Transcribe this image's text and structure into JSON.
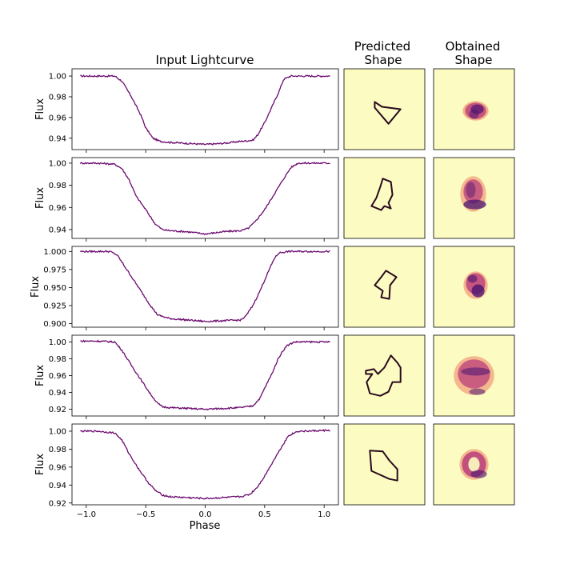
{
  "titles": {
    "lightcurve": "Input Lightcurve",
    "predicted_line1": "Predicted",
    "predicted_line2": "Shape",
    "obtained_line1": "Obtained",
    "obtained_line2": "Shape"
  },
  "colors": {
    "curve": "#6b0a6f",
    "panel_bg": "#fcfcc2",
    "outline": "#2a0a1e",
    "blob_dark": "#4a1470",
    "blob_mid": "#b5367a",
    "blob_light": "#f08a6a"
  },
  "chart_data": {
    "type": "line",
    "xlabel": "Phase",
    "ylabel": "Flux",
    "xlim": [
      -1.12,
      1.12
    ],
    "xticks": [
      -1.0,
      -0.5,
      0.0,
      0.5,
      1.0
    ],
    "xtick_labels": [
      "−1.0",
      "−0.5",
      "0.0",
      "0.5",
      "1.0"
    ],
    "rows": [
      {
        "ylim": [
          0.929,
          1.007
        ],
        "yticks": [
          0.94,
          0.96,
          0.98,
          1.0
        ],
        "ytick_labels": [
          "0.94",
          "0.96",
          "0.98",
          "1.00"
        ],
        "x": [
          -1.05,
          -0.9,
          -0.76,
          -0.7,
          -0.62,
          -0.54,
          -0.5,
          -0.44,
          -0.38,
          -0.3,
          -0.15,
          0.0,
          0.15,
          0.3,
          0.4,
          0.44,
          0.5,
          0.56,
          0.62,
          0.66,
          0.72,
          0.85,
          1.05
        ],
        "y": [
          1.0,
          1.0,
          1.0,
          0.995,
          0.98,
          0.962,
          0.95,
          0.94,
          0.937,
          0.936,
          0.935,
          0.934,
          0.935,
          0.937,
          0.938,
          0.943,
          0.955,
          0.97,
          0.985,
          0.997,
          1.0,
          1.0,
          1.0
        ],
        "predicted_shape": [
          [
            0.38,
            0.41
          ],
          [
            0.47,
            0.47
          ],
          [
            0.7,
            0.5
          ],
          [
            0.55,
            0.68
          ],
          [
            0.38,
            0.48
          ]
        ],
        "obtained_blobs": [
          {
            "cx": 0.52,
            "cy": 0.52,
            "rx": 0.16,
            "ry": 0.12,
            "c": "blob_light",
            "o": 0.65
          },
          {
            "cx": 0.52,
            "cy": 0.52,
            "rx": 0.13,
            "ry": 0.1,
            "c": "blob_mid",
            "o": 0.75
          },
          {
            "cx": 0.54,
            "cy": 0.5,
            "rx": 0.08,
            "ry": 0.06,
            "c": "blob_dark",
            "o": 0.7
          },
          {
            "cx": 0.5,
            "cy": 0.56,
            "rx": 0.06,
            "ry": 0.06,
            "c": "blob_dark",
            "o": 0.55
          }
        ]
      },
      {
        "ylim": [
          0.932,
          1.005
        ],
        "yticks": [
          0.94,
          0.96,
          0.98,
          1.0
        ],
        "ytick_labels": [
          "0.94",
          "0.96",
          "0.98",
          "1.00"
        ],
        "x": [
          -1.05,
          -0.9,
          -0.76,
          -0.7,
          -0.64,
          -0.58,
          -0.5,
          -0.42,
          -0.36,
          -0.3,
          -0.15,
          0.0,
          0.15,
          0.3,
          0.36,
          0.42,
          0.5,
          0.58,
          0.66,
          0.72,
          0.78,
          0.85,
          1.05
        ],
        "y": [
          1.0,
          1.0,
          0.999,
          0.995,
          0.985,
          0.97,
          0.958,
          0.945,
          0.94,
          0.939,
          0.938,
          0.936,
          0.938,
          0.939,
          0.941,
          0.947,
          0.958,
          0.972,
          0.986,
          0.996,
          1.0,
          1.0,
          1.0
        ],
        "predicted_shape": [
          [
            0.48,
            0.26
          ],
          [
            0.58,
            0.3
          ],
          [
            0.6,
            0.46
          ],
          [
            0.55,
            0.56
          ],
          [
            0.58,
            0.63
          ],
          [
            0.5,
            0.6
          ],
          [
            0.46,
            0.65
          ],
          [
            0.34,
            0.6
          ],
          [
            0.4,
            0.5
          ],
          [
            0.45,
            0.36
          ]
        ],
        "obtained_blobs": [
          {
            "cx": 0.49,
            "cy": 0.45,
            "rx": 0.16,
            "ry": 0.22,
            "c": "blob_light",
            "o": 0.6
          },
          {
            "cx": 0.49,
            "cy": 0.42,
            "rx": 0.12,
            "ry": 0.15,
            "c": "blob_mid",
            "o": 0.7
          },
          {
            "cx": 0.51,
            "cy": 0.58,
            "rx": 0.14,
            "ry": 0.06,
            "c": "blob_dark",
            "o": 0.75
          },
          {
            "cx": 0.46,
            "cy": 0.4,
            "rx": 0.06,
            "ry": 0.1,
            "c": "blob_dark",
            "o": 0.45
          }
        ]
      },
      {
        "ylim": [
          0.895,
          1.007
        ],
        "yticks": [
          0.9,
          0.925,
          0.95,
          0.975,
          1.0
        ],
        "ytick_labels": [
          "0.900",
          "0.925",
          "0.950",
          "0.975",
          "1.000"
        ],
        "x": [
          -1.05,
          -0.9,
          -0.8,
          -0.74,
          -0.68,
          -0.6,
          -0.52,
          -0.46,
          -0.4,
          -0.3,
          -0.15,
          0.0,
          0.15,
          0.3,
          0.34,
          0.4,
          0.46,
          0.52,
          0.58,
          0.62,
          0.7,
          0.85,
          1.05
        ],
        "y": [
          1.0,
          1.0,
          1.0,
          0.995,
          0.98,
          0.96,
          0.94,
          0.925,
          0.912,
          0.907,
          0.905,
          0.903,
          0.904,
          0.905,
          0.91,
          0.925,
          0.945,
          0.968,
          0.99,
          0.998,
          1.0,
          1.0,
          1.0
        ],
        "predicted_shape": [
          [
            0.52,
            0.3
          ],
          [
            0.65,
            0.38
          ],
          [
            0.57,
            0.48
          ],
          [
            0.56,
            0.65
          ],
          [
            0.46,
            0.63
          ],
          [
            0.48,
            0.55
          ],
          [
            0.38,
            0.48
          ],
          [
            0.46,
            0.38
          ]
        ],
        "obtained_blobs": [
          {
            "cx": 0.52,
            "cy": 0.48,
            "rx": 0.15,
            "ry": 0.17,
            "c": "blob_light",
            "o": 0.6
          },
          {
            "cx": 0.52,
            "cy": 0.46,
            "rx": 0.12,
            "ry": 0.13,
            "c": "blob_mid",
            "o": 0.75
          },
          {
            "cx": 0.55,
            "cy": 0.55,
            "rx": 0.08,
            "ry": 0.08,
            "c": "blob_dark",
            "o": 0.8
          },
          {
            "cx": 0.48,
            "cy": 0.4,
            "rx": 0.06,
            "ry": 0.05,
            "c": "blob_dark",
            "o": 0.6
          }
        ]
      },
      {
        "ylim": [
          0.912,
          1.008
        ],
        "yticks": [
          0.92,
          0.94,
          0.96,
          0.98,
          1.0
        ],
        "ytick_labels": [
          "0.92",
          "0.94",
          "0.96",
          "0.98",
          "1.00"
        ],
        "x": [
          -1.05,
          -0.9,
          -0.76,
          -0.7,
          -0.62,
          -0.54,
          -0.46,
          -0.4,
          -0.36,
          -0.3,
          -0.15,
          0.0,
          0.15,
          0.3,
          0.4,
          0.46,
          0.5,
          0.56,
          0.62,
          0.68,
          0.75,
          0.85,
          1.05
        ],
        "y": [
          1.001,
          1.001,
          1.0,
          0.99,
          0.972,
          0.955,
          0.938,
          0.927,
          0.923,
          0.922,
          0.921,
          0.92,
          0.921,
          0.922,
          0.924,
          0.933,
          0.945,
          0.962,
          0.982,
          0.995,
          1.0,
          1.0,
          1.0
        ],
        "predicted_shape": [
          [
            0.27,
            0.44
          ],
          [
            0.37,
            0.42
          ],
          [
            0.42,
            0.48
          ],
          [
            0.5,
            0.4
          ],
          [
            0.58,
            0.25
          ],
          [
            0.66,
            0.34
          ],
          [
            0.7,
            0.4
          ],
          [
            0.7,
            0.58
          ],
          [
            0.6,
            0.58
          ],
          [
            0.55,
            0.7
          ],
          [
            0.45,
            0.75
          ],
          [
            0.32,
            0.72
          ],
          [
            0.28,
            0.58
          ],
          [
            0.35,
            0.48
          ],
          [
            0.27,
            0.48
          ]
        ],
        "obtained_blobs": [
          {
            "cx": 0.5,
            "cy": 0.5,
            "rx": 0.25,
            "ry": 0.24,
            "c": "blob_light",
            "o": 0.6
          },
          {
            "cx": 0.5,
            "cy": 0.48,
            "rx": 0.2,
            "ry": 0.18,
            "c": "blob_mid",
            "o": 0.7
          },
          {
            "cx": 0.52,
            "cy": 0.45,
            "rx": 0.18,
            "ry": 0.05,
            "c": "blob_dark",
            "o": 0.55
          },
          {
            "cx": 0.54,
            "cy": 0.7,
            "rx": 0.1,
            "ry": 0.04,
            "c": "blob_dark",
            "o": 0.55
          }
        ]
      },
      {
        "ylim": [
          0.918,
          1.008
        ],
        "yticks": [
          0.92,
          0.94,
          0.96,
          0.98,
          1.0
        ],
        "ytick_labels": [
          "0.92",
          "0.94",
          "0.96",
          "0.98",
          "1.00"
        ],
        "x": [
          -1.05,
          -0.9,
          -0.76,
          -0.7,
          -0.64,
          -0.56,
          -0.48,
          -0.42,
          -0.36,
          -0.3,
          -0.15,
          0.0,
          0.15,
          0.3,
          0.38,
          0.44,
          0.5,
          0.56,
          0.64,
          0.7,
          0.78,
          0.85,
          1.05
        ],
        "y": [
          1.0,
          1.0,
          0.998,
          0.99,
          0.975,
          0.958,
          0.943,
          0.934,
          0.929,
          0.927,
          0.926,
          0.925,
          0.926,
          0.927,
          0.93,
          0.938,
          0.95,
          0.964,
          0.982,
          0.995,
          1.0,
          1.0,
          1.001
        ],
        "predicted_shape": [
          [
            0.32,
            0.33
          ],
          [
            0.48,
            0.34
          ],
          [
            0.56,
            0.45
          ],
          [
            0.66,
            0.56
          ],
          [
            0.66,
            0.7
          ],
          [
            0.56,
            0.68
          ],
          [
            0.34,
            0.58
          ]
        ],
        "obtained_blobs": [
          {
            "cx": 0.5,
            "cy": 0.5,
            "rx": 0.18,
            "ry": 0.19,
            "c": "blob_light",
            "o": 0.6
          },
          {
            "cx": 0.5,
            "cy": 0.5,
            "rx": 0.15,
            "ry": 0.16,
            "c": "blob_mid",
            "o": 0.8
          },
          {
            "cx": 0.5,
            "cy": 0.5,
            "rx": 0.07,
            "ry": 0.09,
            "c": "panel_bg",
            "o": 0.9
          },
          {
            "cx": 0.56,
            "cy": 0.62,
            "rx": 0.1,
            "ry": 0.05,
            "c": "blob_dark",
            "o": 0.6
          }
        ]
      }
    ]
  }
}
